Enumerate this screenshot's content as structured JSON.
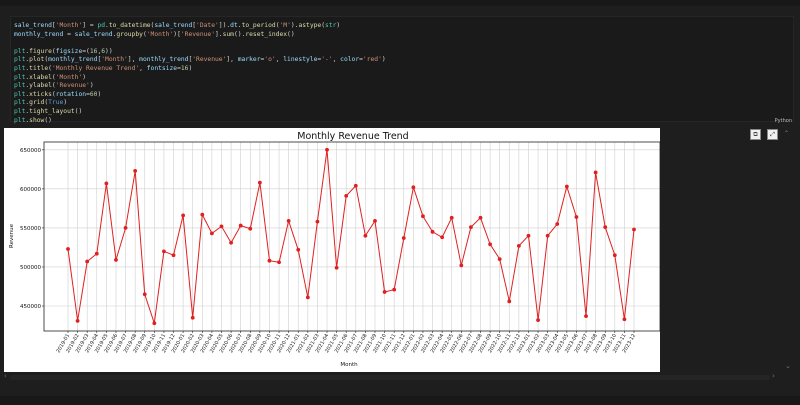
{
  "code_cell": {
    "language_label": "Python",
    "lines": [
      [
        {
          "t": "sale_trend",
          "c": "#9cdcfe"
        },
        {
          "t": "[",
          "c": "#d4d4d4"
        },
        {
          "t": "'Month'",
          "c": "#ce9178"
        },
        {
          "t": "] = ",
          "c": "#d4d4d4"
        },
        {
          "t": "pd",
          "c": "#4ec9b0"
        },
        {
          "t": ".",
          "c": "#d4d4d4"
        },
        {
          "t": "to_datetime",
          "c": "#dcdcaa"
        },
        {
          "t": "(",
          "c": "#d4d4d4"
        },
        {
          "t": "sale_trend",
          "c": "#9cdcfe"
        },
        {
          "t": "[",
          "c": "#d4d4d4"
        },
        {
          "t": "'Date'",
          "c": "#ce9178"
        },
        {
          "t": "]).",
          "c": "#d4d4d4"
        },
        {
          "t": "dt",
          "c": "#9cdcfe"
        },
        {
          "t": ".",
          "c": "#d4d4d4"
        },
        {
          "t": "to_period",
          "c": "#dcdcaa"
        },
        {
          "t": "(",
          "c": "#d4d4d4"
        },
        {
          "t": "'M'",
          "c": "#ce9178"
        },
        {
          "t": ").",
          "c": "#d4d4d4"
        },
        {
          "t": "astype",
          "c": "#dcdcaa"
        },
        {
          "t": "(",
          "c": "#d4d4d4"
        },
        {
          "t": "str",
          "c": "#4ec9b0"
        },
        {
          "t": ")",
          "c": "#d4d4d4"
        }
      ],
      [
        {
          "t": "monthly_trend",
          "c": "#9cdcfe"
        },
        {
          "t": " = ",
          "c": "#d4d4d4"
        },
        {
          "t": "sale_trend",
          "c": "#9cdcfe"
        },
        {
          "t": ".",
          "c": "#d4d4d4"
        },
        {
          "t": "groupby",
          "c": "#dcdcaa"
        },
        {
          "t": "(",
          "c": "#d4d4d4"
        },
        {
          "t": "'Month'",
          "c": "#ce9178"
        },
        {
          "t": ")[",
          "c": "#d4d4d4"
        },
        {
          "t": "'Revenue'",
          "c": "#ce9178"
        },
        {
          "t": "].",
          "c": "#d4d4d4"
        },
        {
          "t": "sum",
          "c": "#dcdcaa"
        },
        {
          "t": "().",
          "c": "#d4d4d4"
        },
        {
          "t": "reset_index",
          "c": "#dcdcaa"
        },
        {
          "t": "()",
          "c": "#d4d4d4"
        }
      ],
      [],
      [
        {
          "t": "plt",
          "c": "#4ec9b0"
        },
        {
          "t": ".",
          "c": "#d4d4d4"
        },
        {
          "t": "figure",
          "c": "#dcdcaa"
        },
        {
          "t": "(",
          "c": "#d4d4d4"
        },
        {
          "t": "figsize",
          "c": "#9cdcfe"
        },
        {
          "t": "=(",
          "c": "#d4d4d4"
        },
        {
          "t": "16",
          "c": "#b5cea8"
        },
        {
          "t": ",",
          "c": "#d4d4d4"
        },
        {
          "t": "6",
          "c": "#b5cea8"
        },
        {
          "t": "))",
          "c": "#d4d4d4"
        }
      ],
      [
        {
          "t": "plt",
          "c": "#4ec9b0"
        },
        {
          "t": ".",
          "c": "#d4d4d4"
        },
        {
          "t": "plot",
          "c": "#dcdcaa"
        },
        {
          "t": "(",
          "c": "#d4d4d4"
        },
        {
          "t": "monthly_trend",
          "c": "#9cdcfe"
        },
        {
          "t": "[",
          "c": "#d4d4d4"
        },
        {
          "t": "'Month'",
          "c": "#ce9178"
        },
        {
          "t": "], ",
          "c": "#d4d4d4"
        },
        {
          "t": "monthly_trend",
          "c": "#9cdcfe"
        },
        {
          "t": "[",
          "c": "#d4d4d4"
        },
        {
          "t": "'Revenue'",
          "c": "#ce9178"
        },
        {
          "t": "], ",
          "c": "#d4d4d4"
        },
        {
          "t": "marker",
          "c": "#9cdcfe"
        },
        {
          "t": "=",
          "c": "#d4d4d4"
        },
        {
          "t": "'o'",
          "c": "#ce9178"
        },
        {
          "t": ", ",
          "c": "#d4d4d4"
        },
        {
          "t": "linestyle",
          "c": "#9cdcfe"
        },
        {
          "t": "=",
          "c": "#d4d4d4"
        },
        {
          "t": "'-'",
          "c": "#ce9178"
        },
        {
          "t": ", ",
          "c": "#d4d4d4"
        },
        {
          "t": "color",
          "c": "#9cdcfe"
        },
        {
          "t": "=",
          "c": "#d4d4d4"
        },
        {
          "t": "'red'",
          "c": "#ce9178"
        },
        {
          "t": ")",
          "c": "#d4d4d4"
        }
      ],
      [
        {
          "t": "plt",
          "c": "#4ec9b0"
        },
        {
          "t": ".",
          "c": "#d4d4d4"
        },
        {
          "t": "title",
          "c": "#dcdcaa"
        },
        {
          "t": "(",
          "c": "#d4d4d4"
        },
        {
          "t": "'Monthly Revenue Trend'",
          "c": "#ce9178"
        },
        {
          "t": ", ",
          "c": "#d4d4d4"
        },
        {
          "t": "fontsize",
          "c": "#9cdcfe"
        },
        {
          "t": "=",
          "c": "#d4d4d4"
        },
        {
          "t": "16",
          "c": "#b5cea8"
        },
        {
          "t": ")",
          "c": "#d4d4d4"
        }
      ],
      [
        {
          "t": "plt",
          "c": "#4ec9b0"
        },
        {
          "t": ".",
          "c": "#d4d4d4"
        },
        {
          "t": "xlabel",
          "c": "#dcdcaa"
        },
        {
          "t": "(",
          "c": "#d4d4d4"
        },
        {
          "t": "'Month'",
          "c": "#ce9178"
        },
        {
          "t": ")",
          "c": "#d4d4d4"
        }
      ],
      [
        {
          "t": "plt",
          "c": "#4ec9b0"
        },
        {
          "t": ".",
          "c": "#d4d4d4"
        },
        {
          "t": "ylabel",
          "c": "#dcdcaa"
        },
        {
          "t": "(",
          "c": "#d4d4d4"
        },
        {
          "t": "'Revenue'",
          "c": "#ce9178"
        },
        {
          "t": ")",
          "c": "#d4d4d4"
        }
      ],
      [
        {
          "t": "plt",
          "c": "#4ec9b0"
        },
        {
          "t": ".",
          "c": "#d4d4d4"
        },
        {
          "t": "xticks",
          "c": "#dcdcaa"
        },
        {
          "t": "(",
          "c": "#d4d4d4"
        },
        {
          "t": "rotation",
          "c": "#9cdcfe"
        },
        {
          "t": "=",
          "c": "#d4d4d4"
        },
        {
          "t": "60",
          "c": "#b5cea8"
        },
        {
          "t": ")",
          "c": "#d4d4d4"
        }
      ],
      [
        {
          "t": "plt",
          "c": "#4ec9b0"
        },
        {
          "t": ".",
          "c": "#d4d4d4"
        },
        {
          "t": "grid",
          "c": "#dcdcaa"
        },
        {
          "t": "(",
          "c": "#d4d4d4"
        },
        {
          "t": "True",
          "c": "#569cd6"
        },
        {
          "t": ")",
          "c": "#d4d4d4"
        }
      ],
      [
        {
          "t": "plt",
          "c": "#4ec9b0"
        },
        {
          "t": ".",
          "c": "#d4d4d4"
        },
        {
          "t": "tight_layout",
          "c": "#dcdcaa"
        },
        {
          "t": "()",
          "c": "#d4d4d4"
        }
      ],
      [
        {
          "t": "plt",
          "c": "#4ec9b0"
        },
        {
          "t": ".",
          "c": "#d4d4d4"
        },
        {
          "t": "show",
          "c": "#dcdcaa"
        },
        {
          "t": "()",
          "c": "#d4d4d4"
        }
      ]
    ]
  },
  "output_toolbar": {
    "icons": [
      "copy-icon",
      "expand-icon",
      "chevron-up-icon"
    ]
  },
  "chart_data": {
    "type": "line",
    "title": "Monthly Revenue Trend",
    "xlabel": "Month",
    "ylabel": "Revenue",
    "color": "#e02020",
    "marker": "o",
    "grid": true,
    "ylim": [
      418000,
      660000
    ],
    "yticks": [
      450000,
      500000,
      550000,
      600000,
      650000
    ],
    "categories": [
      "2019-01",
      "2019-02",
      "2019-03",
      "2019-04",
      "2019-05",
      "2019-06",
      "2019-07",
      "2019-08",
      "2019-09",
      "2019-10",
      "2019-11",
      "2019-12",
      "2020-01",
      "2020-02",
      "2020-03",
      "2020-04",
      "2020-05",
      "2020-06",
      "2020-07",
      "2020-08",
      "2020-09",
      "2020-10",
      "2020-11",
      "2020-12",
      "2021-01",
      "2021-02",
      "2021-03",
      "2021-04",
      "2021-05",
      "2021-06",
      "2021-07",
      "2021-08",
      "2021-09",
      "2021-10",
      "2021-11",
      "2021-12",
      "2022-01",
      "2022-02",
      "2022-03",
      "2022-04",
      "2022-05",
      "2022-06",
      "2022-07",
      "2022-08",
      "2022-09",
      "2022-10",
      "2022-11",
      "2022-12",
      "2023-01",
      "2023-02",
      "2023-03",
      "2023-04",
      "2023-05",
      "2023-06",
      "2023-07",
      "2023-08",
      "2023-09",
      "2023-10",
      "2023-11",
      "2023-12"
    ],
    "values": [
      523000,
      431000,
      507000,
      517000,
      607000,
      509000,
      550000,
      623000,
      465000,
      428000,
      520000,
      515000,
      566000,
      435000,
      567000,
      543000,
      552000,
      531000,
      553000,
      549000,
      608000,
      508000,
      506000,
      559000,
      522000,
      461000,
      558000,
      650000,
      499000,
      591000,
      604000,
      540000,
      559000,
      468000,
      471000,
      537000,
      602000,
      565000,
      545000,
      538000,
      563000,
      502000,
      551000,
      563000,
      529000,
      510000,
      456000,
      527000,
      540000,
      432000,
      540000,
      555000,
      603000,
      564000,
      437000,
      621000,
      551000,
      515000,
      433000,
      548000
    ]
  }
}
